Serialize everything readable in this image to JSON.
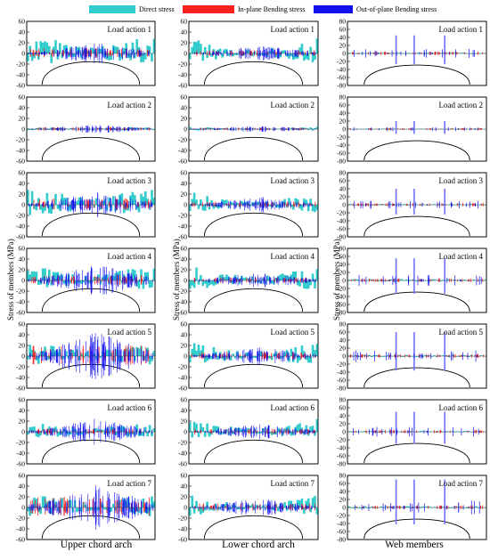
{
  "legend": [
    {
      "label": "Direct stress",
      "color": "#33cccc"
    },
    {
      "label": "In-plane Bending stress",
      "color": "#ff2020"
    },
    {
      "label": "Out-of-plane Bending stress",
      "color": "#1010ee"
    }
  ],
  "columns": [
    {
      "title": "Upper chord arch"
    },
    {
      "title": "Lower chord arch"
    },
    {
      "title": "Web members"
    }
  ],
  "ylabel": "Stress of members (MPa)",
  "load_labels": [
    "Load action 1",
    "Load action 2",
    "Load action 3",
    "Load action 4",
    "Load action 5",
    "Load action 6",
    "Load action 7"
  ],
  "chart_data": [
    {
      "type": "bar",
      "column": "Upper chord arch",
      "ylim": [
        -60,
        60
      ],
      "yticks": [
        60,
        40,
        20,
        0,
        -20,
        -40,
        -60
      ],
      "panels": [
        {
          "load": "Load action 1",
          "direct_max": 30,
          "inplane_max": 10,
          "outplane_max": 20
        },
        {
          "load": "Load action 2",
          "direct_max": 4,
          "inplane_max": 4,
          "outplane_max": 8
        },
        {
          "load": "Load action 3",
          "direct_max": 28,
          "inplane_max": 12,
          "outplane_max": 25
        },
        {
          "load": "Load action 4",
          "direct_max": 24,
          "inplane_max": 10,
          "outplane_max": 30
        },
        {
          "load": "Load action 5",
          "direct_max": 22,
          "inplane_max": 20,
          "outplane_max": 45
        },
        {
          "load": "Load action 6",
          "direct_max": 16,
          "inplane_max": 6,
          "outplane_max": 25
        },
        {
          "load": "Load action 7",
          "direct_max": 24,
          "inplane_max": 20,
          "outplane_max": 45
        }
      ]
    },
    {
      "type": "bar",
      "column": "Lower chord arch",
      "ylim": [
        -60,
        60
      ],
      "yticks": [
        60,
        40,
        20,
        0,
        -20,
        -40,
        -60
      ],
      "panels": [
        {
          "load": "Load action 1",
          "direct_max": 30,
          "inplane_max": 6,
          "outplane_max": 15
        },
        {
          "load": "Load action 2",
          "direct_max": 5,
          "inplane_max": 3,
          "outplane_max": 6
        },
        {
          "load": "Load action 3",
          "direct_max": 25,
          "inplane_max": 6,
          "outplane_max": 15
        },
        {
          "load": "Load action 4",
          "direct_max": 30,
          "inplane_max": 6,
          "outplane_max": 15
        },
        {
          "load": "Load action 5",
          "direct_max": 30,
          "inplane_max": 8,
          "outplane_max": 18
        },
        {
          "load": "Load action 6",
          "direct_max": 25,
          "inplane_max": 6,
          "outplane_max": 15
        },
        {
          "load": "Load action 7",
          "direct_max": 25,
          "inplane_max": 8,
          "outplane_max": 18
        }
      ]
    },
    {
      "type": "bar",
      "column": "Web members",
      "ylim": [
        -80,
        80
      ],
      "yticks": [
        80,
        60,
        40,
        20,
        0,
        -20,
        -40,
        -60,
        -80
      ],
      "panels": [
        {
          "load": "Load action 1",
          "direct_max": 6,
          "inplane_max": 5,
          "outplane_max": 45
        },
        {
          "load": "Load action 2",
          "direct_max": 3,
          "inplane_max": 3,
          "outplane_max": 20
        },
        {
          "load": "Load action 3",
          "direct_max": 6,
          "inplane_max": 5,
          "outplane_max": 40
        },
        {
          "load": "Load action 4",
          "direct_max": 8,
          "inplane_max": 5,
          "outplane_max": 55
        },
        {
          "load": "Load action 5",
          "direct_max": 8,
          "inplane_max": 6,
          "outplane_max": 60
        },
        {
          "load": "Load action 6",
          "direct_max": 6,
          "inplane_max": 5,
          "outplane_max": 50
        },
        {
          "load": "Load action 7",
          "direct_max": 8,
          "inplane_max": 6,
          "outplane_max": 70
        }
      ]
    }
  ]
}
